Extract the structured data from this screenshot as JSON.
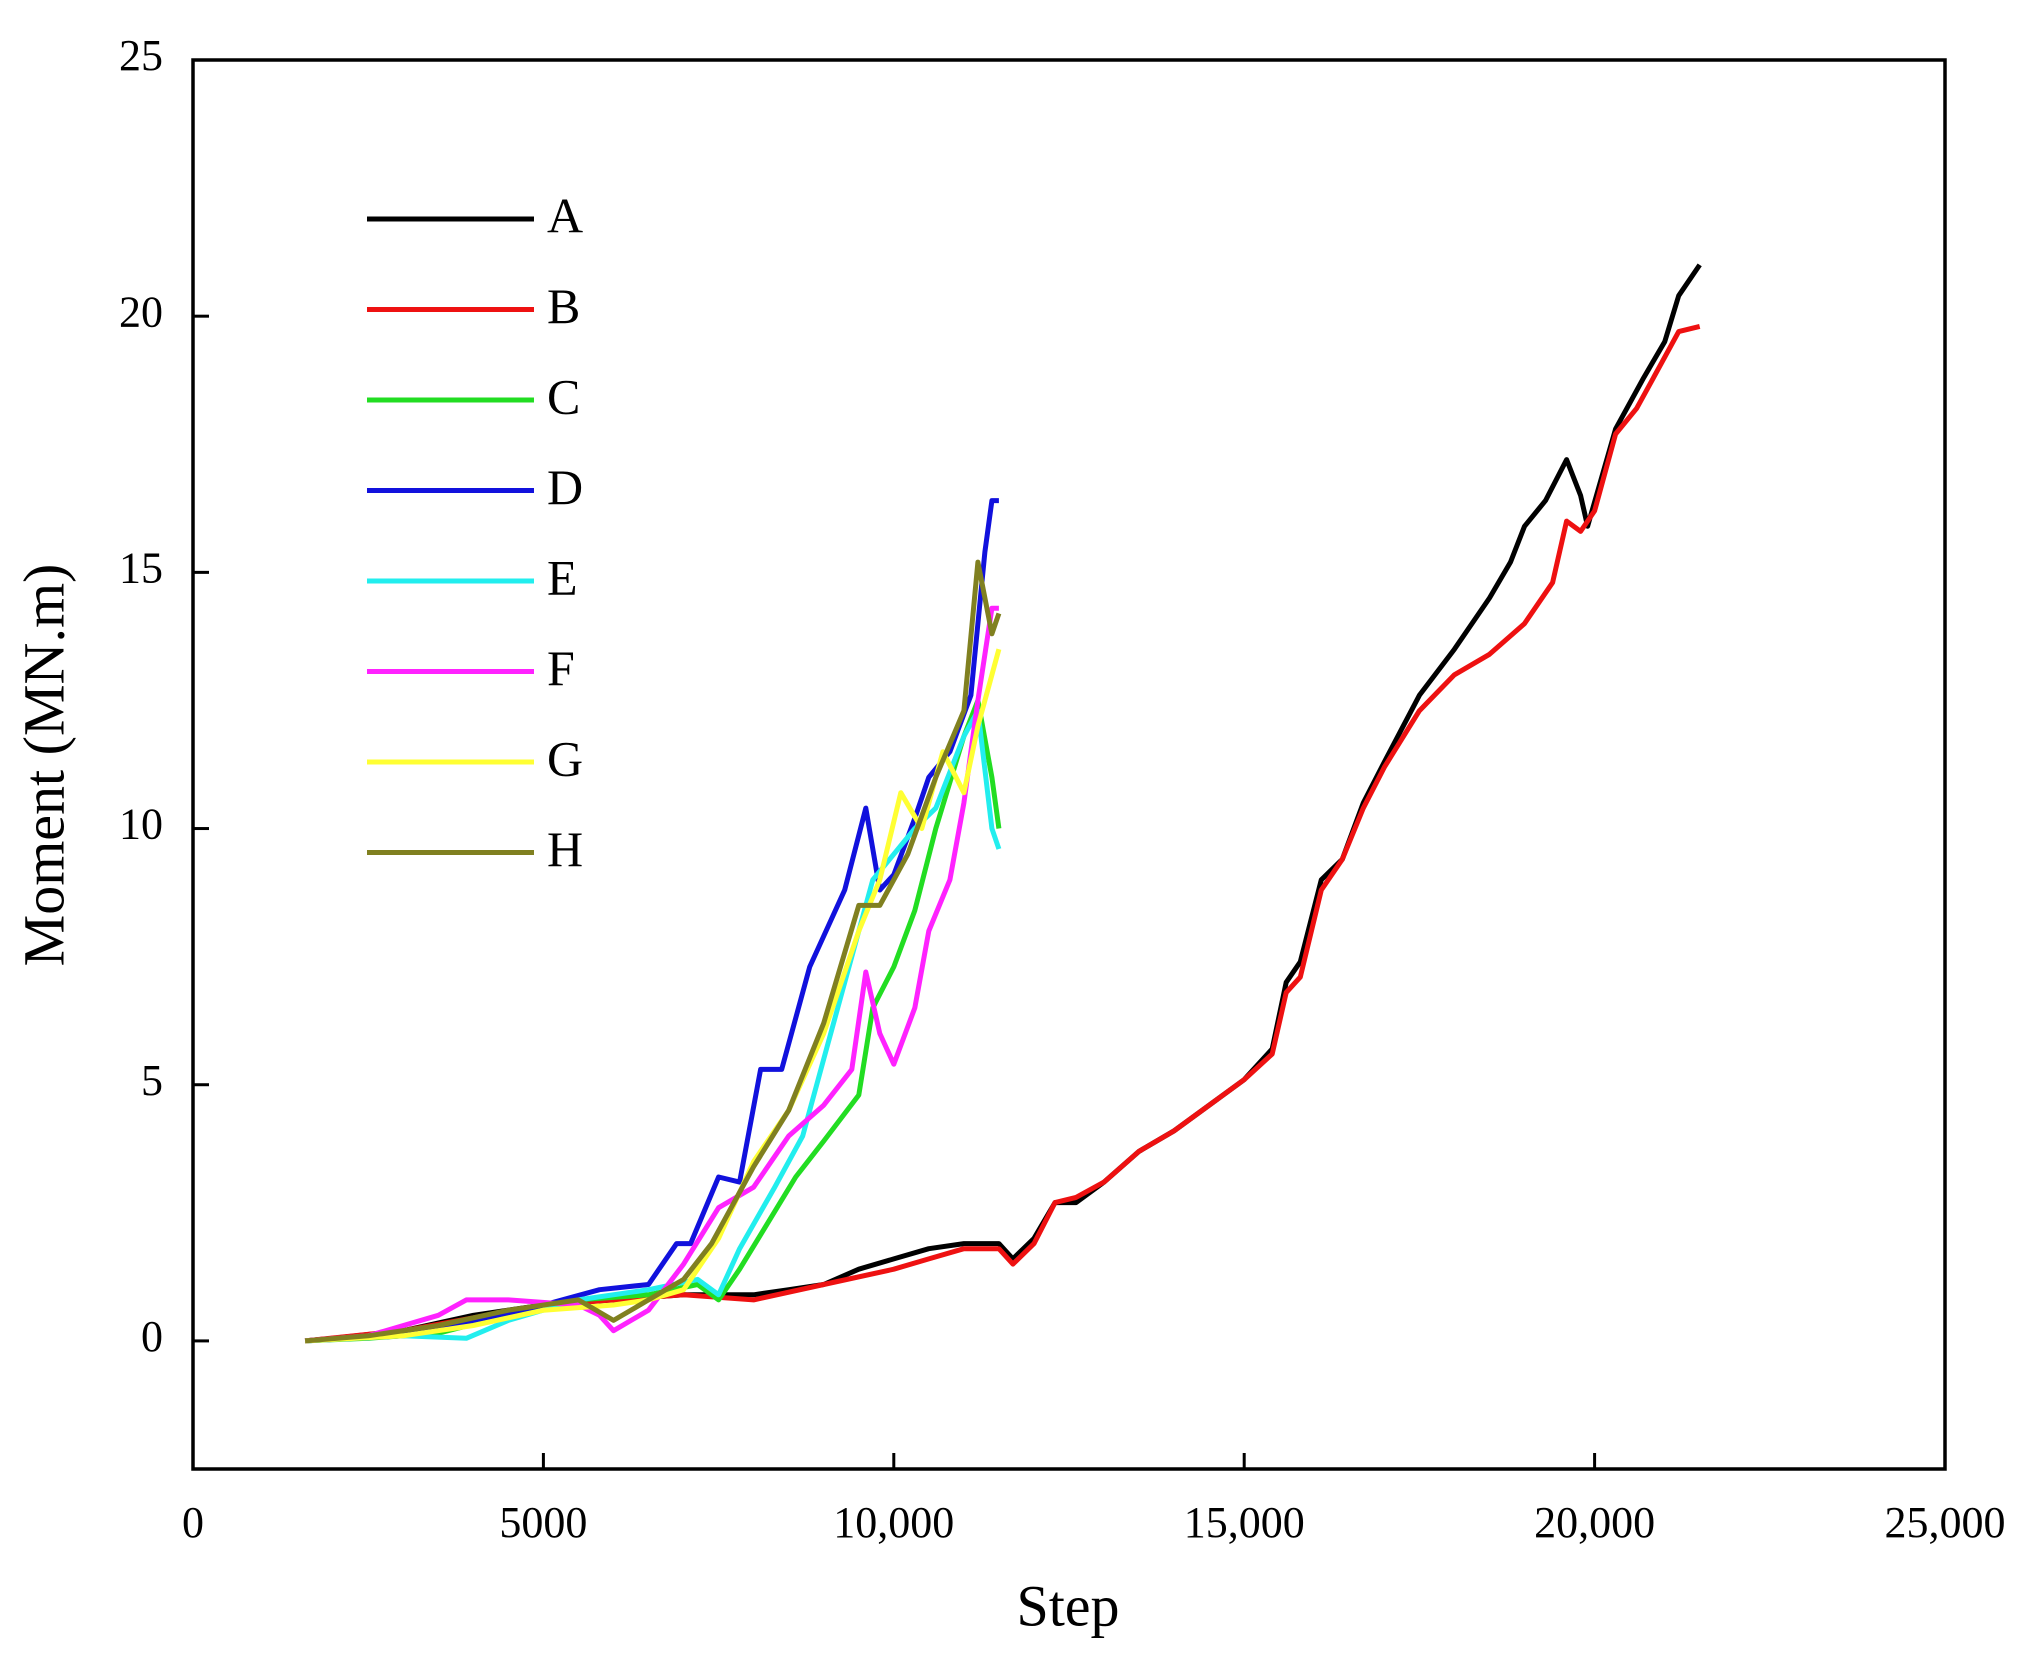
{
  "chart_data": {
    "type": "line",
    "x_label": "Step",
    "y_label": "Moment (MN.m)",
    "xlim": [
      0,
      25000
    ],
    "ylim": [
      -2.5,
      25
    ],
    "xticks": [
      0,
      5000,
      {
        "value": 10000,
        "label": "10,000"
      },
      {
        "value": 15000,
        "label": "15,000"
      },
      {
        "value": 20000,
        "label": "20,000"
      },
      {
        "value": 25000,
        "label": "25,000"
      }
    ],
    "yticks": [
      0,
      5,
      10,
      15,
      20,
      25
    ],
    "legend": "upper left",
    "series": [
      {
        "name": "A",
        "color": "#000000",
        "x": [
          1600,
          2000,
          3000,
          4000,
          5000,
          6000,
          7000,
          8000,
          8500,
          9000,
          9500,
          10000,
          10500,
          11000,
          11500,
          11700,
          12000,
          12300,
          12600,
          13000,
          13500,
          14000,
          14500,
          15000,
          15400,
          15600,
          15800,
          16100,
          16400,
          16700,
          17000,
          17500,
          18000,
          18500,
          18800,
          19000,
          19300,
          19600,
          19800,
          19900,
          20300,
          20700,
          21000,
          21200,
          21500
        ],
        "values": [
          0,
          0.05,
          0.2,
          0.5,
          0.7,
          0.8,
          0.9,
          0.9,
          1.0,
          1.1,
          1.4,
          1.6,
          1.8,
          1.9,
          1.9,
          1.6,
          2.0,
          2.7,
          2.7,
          3.1,
          3.7,
          4.1,
          4.6,
          5.1,
          5.7,
          7.0,
          7.4,
          9.0,
          9.4,
          10.5,
          11.3,
          12.6,
          13.5,
          14.5,
          15.2,
          15.9,
          16.4,
          17.2,
          16.5,
          15.9,
          17.8,
          18.8,
          19.5,
          20.4,
          21.0
        ]
      },
      {
        "name": "B",
        "color": "#ee1111",
        "x": [
          1600,
          3000,
          5000,
          7000,
          8000,
          9000,
          10000,
          10500,
          11000,
          11500,
          11700,
          12000,
          12300,
          12600,
          13000,
          13500,
          14000,
          14500,
          15000,
          15400,
          15600,
          15800,
          16100,
          16400,
          16700,
          17000,
          17500,
          18000,
          18500,
          19000,
          19400,
          19600,
          19800,
          20000,
          20300,
          20600,
          20800,
          21000,
          21200,
          21500
        ],
        "values": [
          0,
          0.2,
          0.7,
          0.9,
          0.8,
          1.1,
          1.4,
          1.6,
          1.8,
          1.8,
          1.5,
          1.9,
          2.7,
          2.8,
          3.1,
          3.7,
          4.1,
          4.6,
          5.1,
          5.6,
          6.8,
          7.1,
          8.8,
          9.4,
          10.4,
          11.2,
          12.3,
          13.0,
          13.4,
          14.0,
          14.8,
          16.0,
          15.8,
          16.2,
          17.7,
          18.2,
          18.7,
          19.2,
          19.7,
          19.8
        ]
      },
      {
        "name": "C",
        "color": "#22dd22",
        "x": [
          1600,
          2500,
          3500,
          4500,
          5500,
          6500,
          7200,
          7500,
          7800,
          8200,
          8600,
          9000,
          9500,
          9700,
          10000,
          10300,
          10600,
          11000,
          11200,
          11400,
          11500
        ],
        "values": [
          0,
          0.05,
          0.15,
          0.5,
          0.8,
          0.9,
          1.1,
          0.8,
          1.4,
          2.3,
          3.2,
          3.9,
          4.8,
          6.5,
          7.3,
          8.4,
          10.0,
          11.8,
          12.5,
          11.0,
          10.0
        ]
      },
      {
        "name": "D",
        "color": "#1111dd",
        "x": [
          1600,
          3000,
          4000,
          5000,
          5800,
          6500,
          6900,
          7100,
          7500,
          7800,
          8100,
          8400,
          8800,
          9300,
          9600,
          9800,
          10000,
          10300,
          10500,
          10800,
          11100,
          11300,
          11400,
          11500
        ],
        "values": [
          0,
          0.1,
          0.4,
          0.7,
          1.0,
          1.1,
          1.9,
          1.9,
          3.2,
          3.1,
          5.3,
          5.3,
          7.3,
          8.8,
          10.4,
          8.8,
          9.1,
          10.2,
          11.0,
          11.5,
          12.6,
          15.4,
          16.4,
          16.4
        ]
      },
      {
        "name": "E",
        "color": "#22eeee",
        "x": [
          1600,
          3000,
          3900,
          4500,
          5500,
          6500,
          7200,
          7500,
          7800,
          8300,
          8700,
          9000,
          9400,
          9700,
          10000,
          10300,
          10600,
          11000,
          11200,
          11400,
          11500
        ],
        "values": [
          0,
          0.1,
          0.05,
          0.4,
          0.8,
          1.0,
          1.2,
          0.9,
          1.8,
          3.0,
          4.0,
          5.5,
          7.5,
          9.0,
          9.5,
          10.0,
          10.4,
          11.8,
          12.3,
          10.0,
          9.6
        ]
      },
      {
        "name": "F",
        "color": "#ff22ff",
        "x": [
          1600,
          2500,
          3500,
          3900,
          4500,
          5500,
          5800,
          6000,
          6500,
          7000,
          7500,
          8000,
          8500,
          9000,
          9400,
          9600,
          9800,
          10000,
          10300,
          10500,
          10800,
          11000,
          11200,
          11400,
          11500
        ],
        "values": [
          0,
          0.1,
          0.5,
          0.8,
          0.8,
          0.7,
          0.5,
          0.2,
          0.6,
          1.5,
          2.6,
          3.0,
          4.0,
          4.6,
          5.3,
          7.2,
          6.0,
          5.4,
          6.5,
          8.0,
          9.0,
          10.5,
          12.5,
          14.3,
          14.3
        ]
      },
      {
        "name": "G",
        "color": "#ffff33",
        "x": [
          1600,
          3000,
          4000,
          5000,
          6000,
          6500,
          7000,
          7500,
          8000,
          8500,
          9000,
          9500,
          9800,
          10100,
          10400,
          10700,
          11000,
          11200,
          11500
        ],
        "values": [
          0,
          0.1,
          0.3,
          0.6,
          0.7,
          0.8,
          1.0,
          2.0,
          3.5,
          4.5,
          6.0,
          8.0,
          9.0,
          10.7,
          10.0,
          11.5,
          10.7,
          12.0,
          13.5
        ]
      },
      {
        "name": "H",
        "color": "#808020",
        "x": [
          1600,
          2500,
          3500,
          4500,
          5500,
          6000,
          6500,
          7000,
          7400,
          8000,
          8500,
          9000,
          9500,
          9800,
          10200,
          10600,
          11000,
          11200,
          11400,
          11500
        ],
        "values": [
          0,
          0.1,
          0.3,
          0.6,
          0.8,
          0.4,
          0.8,
          1.2,
          1.9,
          3.4,
          4.5,
          6.2,
          8.5,
          8.5,
          9.5,
          11.0,
          12.3,
          15.2,
          13.8,
          14.2
        ]
      }
    ]
  }
}
